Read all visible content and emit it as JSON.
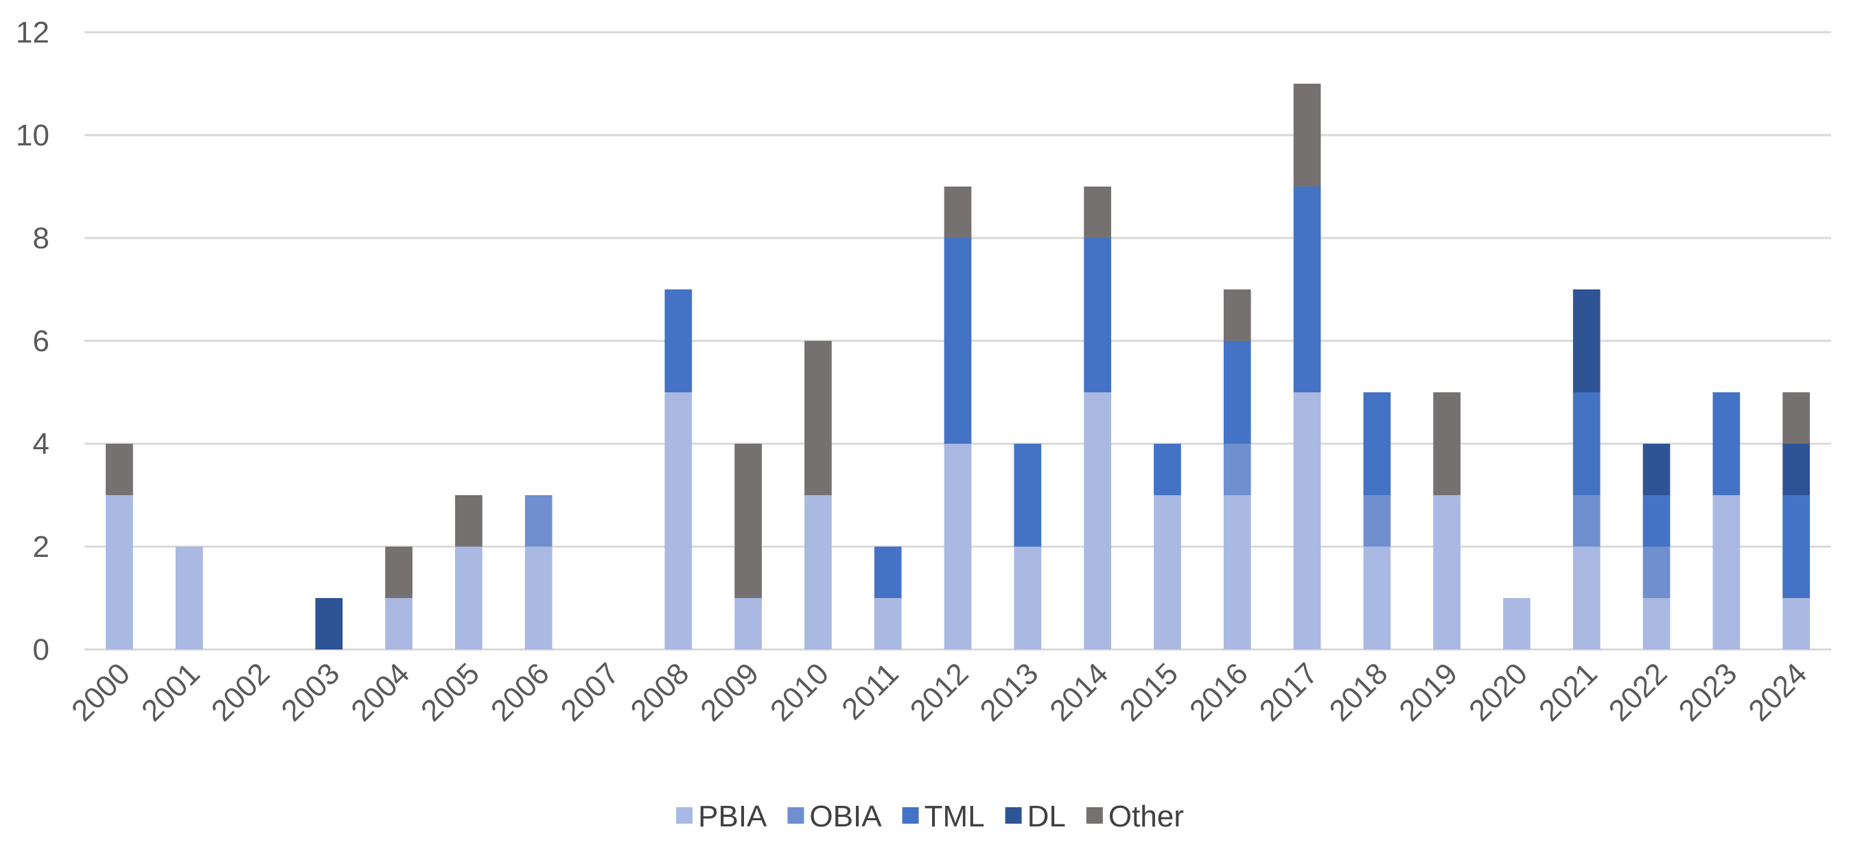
{
  "chart_data": {
    "type": "bar",
    "stacked": true,
    "categories": [
      "2000",
      "2001",
      "2002",
      "2003",
      "2004",
      "2005",
      "2006",
      "2007",
      "2008",
      "2009",
      "2010",
      "2011",
      "2012",
      "2013",
      "2014",
      "2015",
      "2016",
      "2017",
      "2018",
      "2019",
      "2020",
      "2021",
      "2022",
      "2023",
      "2024"
    ],
    "series": [
      {
        "name": "PBIA",
        "color": "#a9b9e2",
        "values": [
          3,
          2,
          0,
          0,
          1,
          2,
          2,
          0,
          5,
          1,
          3,
          1,
          4,
          2,
          5,
          3,
          3,
          5,
          2,
          3,
          1,
          2,
          1,
          3,
          1
        ]
      },
      {
        "name": "OBIA",
        "color": "#6f8fcf",
        "values": [
          0,
          0,
          0,
          0,
          0,
          0,
          1,
          0,
          0,
          0,
          0,
          0,
          0,
          0,
          0,
          0,
          1,
          0,
          1,
          0,
          0,
          1,
          1,
          0,
          0
        ]
      },
      {
        "name": "TML",
        "color": "#4472c4",
        "values": [
          0,
          0,
          0,
          0,
          0,
          0,
          0,
          0,
          2,
          0,
          0,
          1,
          4,
          2,
          3,
          1,
          2,
          4,
          2,
          0,
          0,
          2,
          1,
          2,
          2
        ]
      },
      {
        "name": "DL",
        "color": "#2f5496",
        "values": [
          0,
          0,
          0,
          1,
          0,
          0,
          0,
          0,
          0,
          0,
          0,
          0,
          0,
          0,
          0,
          0,
          0,
          0,
          0,
          0,
          0,
          2,
          1,
          0,
          1
        ]
      },
      {
        "name": "Other",
        "color": "#767171",
        "values": [
          1,
          0,
          0,
          0,
          1,
          1,
          0,
          0,
          0,
          3,
          3,
          0,
          1,
          0,
          1,
          0,
          1,
          2,
          0,
          2,
          0,
          0,
          0,
          0,
          1
        ]
      }
    ],
    "y_ticks": [
      "0",
      "2",
      "4",
      "6",
      "8",
      "10",
      "12"
    ],
    "ylim": [
      0,
      12
    ],
    "grid": true,
    "legend_position": "bottom"
  }
}
